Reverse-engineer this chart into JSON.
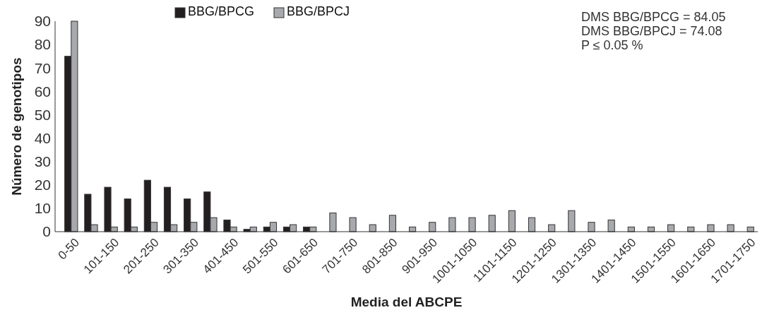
{
  "chart_data": {
    "type": "bar",
    "xlabel": "Media del ABCPE",
    "ylabel": "Número de genotipos",
    "categories": [
      "0-50",
      null,
      "101-150",
      null,
      "201-250",
      null,
      "301-350",
      null,
      "401-450",
      null,
      "501-550",
      null,
      "601-650",
      null,
      "701-750",
      null,
      "801-850",
      null,
      "901-950",
      null,
      "1001-1050",
      null,
      "1101-1150",
      null,
      "1201-1250",
      null,
      "1301-1350",
      null,
      "1401-1450",
      null,
      "1501-1550",
      null,
      "1601-1650",
      null,
      "1701-1750"
    ],
    "series": [
      {
        "name": "BBG/BPCG",
        "color": "#231f20",
        "values": [
          75,
          16,
          19,
          14,
          22,
          19,
          14,
          17,
          5,
          1,
          2,
          2,
          2,
          0,
          0,
          0,
          0,
          0,
          0,
          0,
          0,
          0,
          0,
          0,
          0,
          0,
          0,
          0,
          0,
          0,
          0,
          0,
          0,
          0,
          0
        ]
      },
      {
        "name": "BBG/BPCJ",
        "color": "#a7a9ac",
        "values": [
          90,
          3,
          2,
          2,
          4,
          3,
          4,
          6,
          2,
          2,
          4,
          3,
          2,
          8,
          6,
          3,
          7,
          2,
          4,
          6,
          6,
          7,
          9,
          6,
          3,
          9,
          4,
          5,
          2,
          2,
          3,
          2,
          3,
          3,
          2
        ]
      }
    ],
    "ylim": [
      0,
      90
    ],
    "yticks": [
      0,
      10,
      20,
      30,
      40,
      50,
      60,
      70,
      80,
      90
    ],
    "grid": false,
    "legend": "top",
    "annotations": [
      "DMS BBG/BPCG = 84.05",
      "DMS BBG/BPCJ = 74.08",
      "P ≤ 0.05 %"
    ]
  }
}
